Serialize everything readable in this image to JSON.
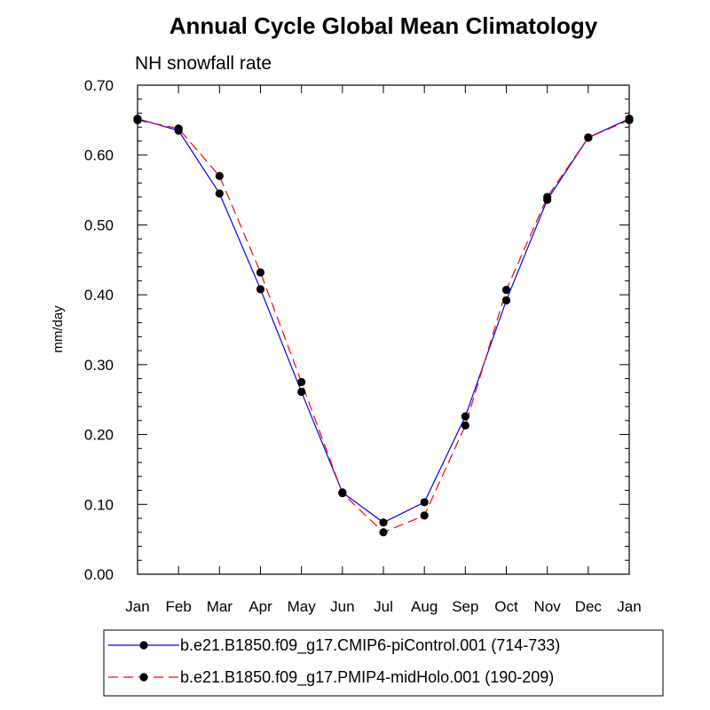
{
  "chart_data": {
    "type": "line",
    "title": "Annual Cycle Global Mean Climatology",
    "subtitle": "NH snowfall rate",
    "xlabel": "",
    "ylabel": "mm/day",
    "categories": [
      "Jan",
      "Feb",
      "Mar",
      "Apr",
      "May",
      "Jun",
      "Jul",
      "Aug",
      "Sep",
      "Oct",
      "Nov",
      "Dec",
      "Jan"
    ],
    "ylim": [
      0.0,
      0.7
    ],
    "yticks": [
      "0.00",
      "0.10",
      "0.20",
      "0.30",
      "0.40",
      "0.50",
      "0.60",
      "0.70"
    ],
    "grid": false,
    "legend_position": "bottom",
    "series": [
      {
        "name": "b.e21.B1850.f09_g17.CMIP6-piControl.001 (714-733)",
        "color": "#0000ff",
        "dash": "solid",
        "marker": "filled-circle",
        "values": [
          0.652,
          0.635,
          0.545,
          0.408,
          0.261,
          0.117,
          0.074,
          0.103,
          0.226,
          0.392,
          0.536,
          0.625,
          0.652
        ]
      },
      {
        "name": "b.e21.B1850.f09_g17.PMIP4-midHolo.001 (190-209)",
        "color": "#ff0000",
        "dash": "dashed",
        "marker": "filled-circle",
        "values": [
          0.65,
          0.638,
          0.57,
          0.432,
          0.275,
          0.116,
          0.06,
          0.084,
          0.213,
          0.407,
          0.54,
          0.625,
          0.65
        ]
      }
    ]
  }
}
